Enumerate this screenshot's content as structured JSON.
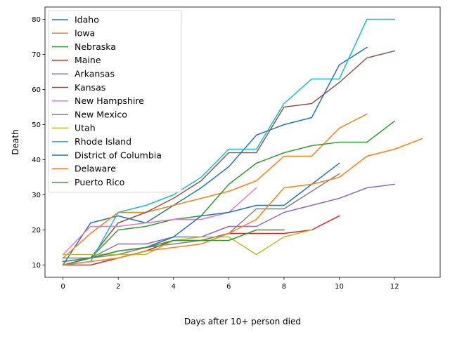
{
  "chart_data": {
    "type": "line",
    "xlabel": "Days after 10+ person died",
    "ylabel": "Death",
    "xlim": [
      -0.65,
      13.65
    ],
    "ylim": [
      6.5,
      83.5
    ],
    "xticks": [
      0,
      2,
      4,
      6,
      8,
      10,
      12
    ],
    "yticks": [
      10,
      20,
      30,
      40,
      50,
      60,
      70,
      80
    ],
    "grid": false,
    "legend_position": "top-left",
    "series": [
      {
        "name": "Idaho",
        "color": "#1f77b4",
        "x": [
          0,
          1,
          2,
          3,
          4,
          5,
          6,
          7,
          8,
          9,
          10,
          11
        ],
        "y": [
          10,
          22,
          24,
          22,
          27,
          32,
          38,
          47,
          50,
          52,
          67,
          72
        ]
      },
      {
        "name": "Iowa",
        "color": "#ff7f0e",
        "x": [
          0,
          1,
          2,
          3,
          4,
          5,
          6,
          7,
          8,
          9,
          10,
          11
        ],
        "y": [
          12,
          19,
          25,
          25,
          27,
          29,
          31,
          34,
          41,
          41,
          49,
          53
        ]
      },
      {
        "name": "Nebraska",
        "color": "#2ca02c",
        "x": [
          0,
          1,
          2,
          3,
          4,
          5,
          6,
          7,
          8,
          9,
          10,
          11,
          12
        ],
        "y": [
          11,
          12,
          20,
          21,
          23,
          24,
          33,
          39,
          42,
          44,
          45,
          45,
          51
        ]
      },
      {
        "name": "Maine",
        "color": "#d62728",
        "x": [
          0,
          1,
          2,
          3,
          4,
          5,
          6,
          7,
          8,
          9,
          10
        ],
        "y": [
          10,
          10,
          12,
          14,
          17,
          17,
          19,
          19,
          19,
          20,
          24
        ]
      },
      {
        "name": "Arkansas",
        "color": "#9467bd",
        "x": [
          0,
          1,
          2,
          3,
          4,
          5,
          6,
          7,
          8,
          9,
          10,
          11,
          12
        ],
        "y": [
          12,
          12,
          16,
          16,
          18,
          18,
          21,
          21,
          25,
          27,
          29,
          32,
          33
        ]
      },
      {
        "name": "Kansas",
        "color": "#8c564b",
        "x": [
          0,
          1,
          2,
          3,
          4,
          5,
          6,
          7,
          8,
          9,
          10,
          11,
          12
        ],
        "y": [
          11,
          12,
          22,
          25,
          29,
          34,
          42,
          42,
          55,
          56,
          62,
          69,
          71
        ]
      },
      {
        "name": "New Hampshire",
        "color": "#e377c2",
        "x": [
          0,
          1,
          2,
          3,
          4,
          5,
          6,
          7
        ],
        "y": [
          13,
          21,
          21,
          22,
          23,
          23,
          25,
          32
        ]
      },
      {
        "name": "New Mexico",
        "color": "#7f7f7f",
        "x": [
          0,
          1,
          2,
          3,
          4,
          5,
          6,
          7,
          8,
          9,
          10
        ],
        "y": [
          10,
          12,
          13,
          15,
          16,
          17,
          19,
          26,
          26,
          31,
          36
        ]
      },
      {
        "name": "Utah",
        "color": "#bcbd22",
        "x": [
          0,
          1,
          2,
          3,
          4,
          5,
          6,
          7,
          8,
          9
        ],
        "y": [
          13,
          13,
          13,
          13,
          17,
          18,
          18,
          13,
          18,
          20
        ]
      },
      {
        "name": "Rhode Island",
        "color": "#17becf",
        "x": [
          0,
          1,
          2,
          3,
          4,
          5,
          6,
          7,
          8,
          9,
          10,
          11,
          12
        ],
        "y": [
          10,
          11,
          25,
          27,
          30,
          35,
          43,
          43,
          56,
          63,
          63,
          80,
          80
        ]
      },
      {
        "name": "District of Columbia",
        "color": "#1f77b4",
        "x": [
          0,
          1,
          2,
          3,
          4,
          5,
          6,
          7,
          8,
          9,
          10
        ],
        "y": [
          10,
          12,
          14,
          15,
          18,
          24,
          25,
          27,
          27,
          33,
          39
        ]
      },
      {
        "name": "Delaware",
        "color": "#ff7f0e",
        "x": [
          0,
          1,
          2,
          3,
          4,
          5,
          6,
          7,
          8,
          9,
          10,
          11,
          12,
          13
        ],
        "y": [
          10,
          11,
          12,
          14,
          15,
          16,
          19,
          23,
          32,
          33,
          35,
          41,
          43,
          46
        ]
      },
      {
        "name": "Puerto Rico",
        "color": "#2ca02c",
        "x": [
          0,
          1,
          2,
          3,
          4,
          5,
          6,
          7,
          8
        ],
        "y": [
          11,
          12,
          14,
          15,
          17,
          17,
          17,
          20,
          20
        ]
      }
    ]
  }
}
